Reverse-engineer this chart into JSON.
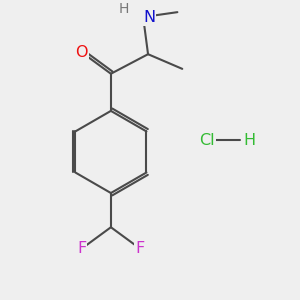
{
  "bg_color": "#efefef",
  "bond_color": "#4a4a4a",
  "bond_width": 1.5,
  "dbo": 0.028,
  "atom_colors": {
    "O": "#ee1111",
    "N": "#1111cc",
    "H_N": "#777777",
    "F": "#cc33cc",
    "Cl": "#33bb33",
    "H_Cl": "#33bb33"
  },
  "font_size": 11.5
}
